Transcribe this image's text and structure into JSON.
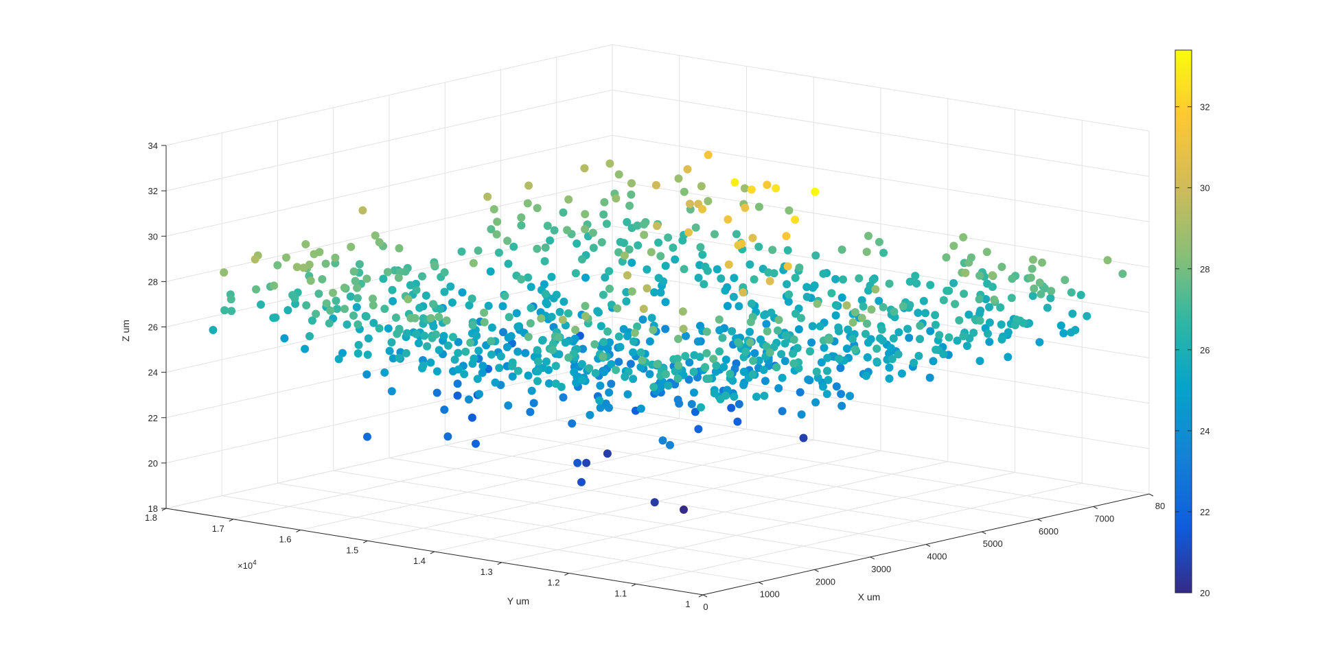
{
  "chart_data": {
    "type": "scatter3d",
    "title": "",
    "xlabel": "X um",
    "ylabel": "Y um",
    "zlabel": "Z um",
    "xlim": [
      0,
      8000
    ],
    "ylim": [
      10000,
      18000
    ],
    "zlim": [
      18,
      34
    ],
    "x_ticks": [
      "0",
      "1000",
      "2000",
      "3000",
      "4000",
      "5000",
      "6000",
      "7000",
      "80"
    ],
    "y_ticks": [
      "1",
      "1.1",
      "1.2",
      "1.3",
      "1.4",
      "1.5",
      "1.6",
      "1.7",
      "1.8"
    ],
    "y_exponent_label": "×10",
    "y_exponent_power": "4",
    "z_ticks": [
      "18",
      "20",
      "22",
      "24",
      "26",
      "28",
      "30",
      "32",
      "34"
    ],
    "colorbar": {
      "colormap": "parula",
      "limits": [
        20,
        33.4
      ],
      "ticks": [
        "20",
        "22",
        "24",
        "26",
        "28",
        "30",
        "32"
      ]
    },
    "grid": true,
    "marker_count_estimate": 1000,
    "points": [
      [
        3430,
        11180,
        33.3
      ],
      [
        3580,
        12500,
        33.0
      ],
      [
        3930,
        12180,
        32.7
      ],
      [
        2830,
        10980,
        32.5
      ],
      [
        4000,
        12600,
        32.4
      ],
      [
        6230,
        15100,
        31.5
      ],
      [
        5180,
        13350,
        31.6
      ],
      [
        2950,
        11210,
        31.6
      ],
      [
        1980,
        10380,
        31.2
      ],
      [
        3600,
        12620,
        31.3
      ],
      [
        4580,
        13180,
        31.0
      ],
      [
        2800,
        11800,
        31.0
      ],
      [
        2680,
        11650,
        31.2
      ],
      [
        4200,
        13500,
        31.0
      ],
      [
        3230,
        12900,
        30.8
      ],
      [
        6460,
        15600,
        30.5
      ],
      [
        5150,
        14350,
        30.3
      ],
      [
        5300,
        14600,
        30.1
      ],
      [
        1490,
        10640,
        30.2
      ],
      [
        3660,
        12300,
        30.6
      ],
      [
        2150,
        11400,
        30.7
      ],
      [
        6020,
        15700,
        30.0
      ],
      [
        720,
        11480,
        29.5
      ],
      [
        1800,
        12330,
        29.4
      ],
      [
        2050,
        12830,
        29.6
      ],
      [
        4350,
        14300,
        29.8
      ],
      [
        6900,
        17500,
        29.4
      ],
      [
        3890,
        14400,
        28.7
      ],
      [
        5200,
        15200,
        28.5
      ],
      [
        4560,
        14560,
        28.4
      ],
      [
        2700,
        13300,
        28.3
      ],
      [
        2120,
        13040,
        28.0
      ],
      [
        2100,
        13500,
        27.9
      ],
      [
        1850,
        13250,
        27.6
      ],
      [
        3500,
        14300,
        27.5
      ],
      [
        900,
        12500,
        28.6
      ],
      [
        600,
        12400,
        28.2
      ],
      [
        1200,
        13200,
        27.2
      ],
      [
        5800,
        16450,
        27.0
      ],
      [
        4700,
        15800,
        26.8
      ],
      [
        3000,
        14500,
        26.6
      ],
      [
        1480,
        13700,
        26.2
      ],
      [
        7000,
        17900,
        27.2
      ],
      [
        6400,
        17200,
        26.5
      ],
      [
        2540,
        14300,
        25.9
      ],
      [
        5100,
        16800,
        25.5
      ],
      [
        4300,
        16350,
        25.0
      ],
      [
        3300,
        15600,
        24.9
      ],
      [
        1700,
        14700,
        24.6
      ],
      [
        800,
        14000,
        24.5
      ],
      [
        2200,
        15400,
        24.3
      ],
      [
        6100,
        17600,
        23.7
      ],
      [
        4900,
        17050,
        23.5
      ],
      [
        3800,
        16500,
        23.2
      ],
      [
        2700,
        15900,
        23.0
      ],
      [
        1500,
        15100,
        22.9
      ],
      [
        600,
        14300,
        22.6
      ],
      [
        5600,
        17500,
        22.4
      ],
      [
        4450,
        16900,
        22.2
      ],
      [
        3300,
        16400,
        21.9
      ],
      [
        7300,
        17900,
        21.6
      ],
      [
        1100,
        14300,
        22.0
      ],
      [
        2600,
        15600,
        21.7
      ],
      [
        3900,
        16600,
        21.5
      ],
      [
        1600,
        13200,
        21.4
      ],
      [
        950,
        12600,
        21.2
      ],
      [
        2300,
        13650,
        20.8
      ],
      [
        3100,
        14000,
        20.6
      ],
      [
        1300,
        11800,
        20.5
      ],
      [
        1700,
        11700,
        20.0
      ]
    ]
  }
}
